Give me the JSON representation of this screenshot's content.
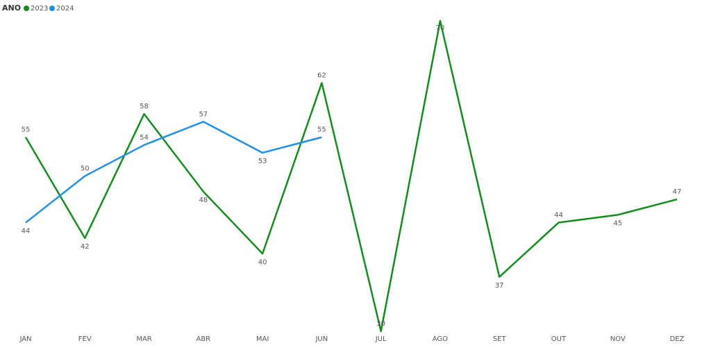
{
  "chart_data": {
    "type": "line",
    "legend_title": "ANO",
    "categories": [
      "JAN",
      "FEV",
      "MAR",
      "ABR",
      "MAI",
      "JUN",
      "JUL",
      "AGO",
      "SET",
      "OUT",
      "NOV",
      "DEZ"
    ],
    "series": [
      {
        "name": "2023",
        "color": "#118d1e",
        "values": [
          55,
          42,
          58,
          48,
          40,
          62,
          30,
          70,
          37,
          44,
          45,
          47
        ]
      },
      {
        "name": "2024",
        "color": "#1e90e8",
        "values": [
          44,
          50,
          54,
          57,
          53,
          55,
          null,
          null,
          null,
          null,
          null,
          null
        ]
      }
    ],
    "legend": "top-left"
  }
}
